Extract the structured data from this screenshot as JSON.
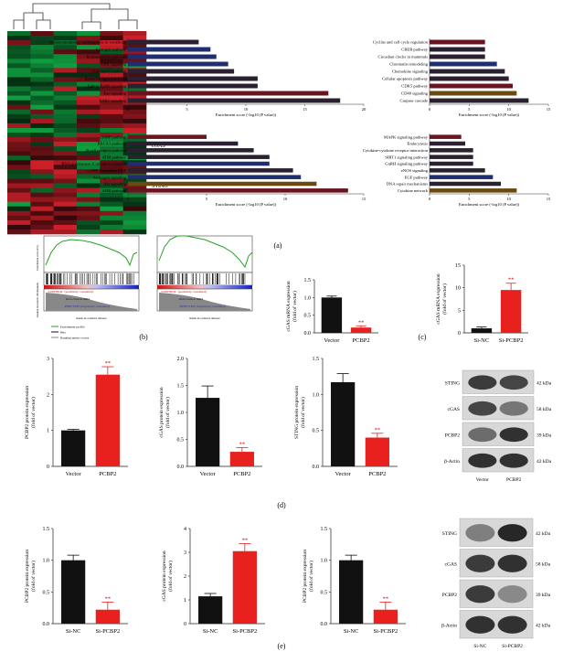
{
  "panel_labels": {
    "a": "(a)",
    "b": "(b)",
    "c": "(c)",
    "d": "(d)",
    "e": "(e)"
  },
  "heatmap": {
    "gene_labels": [
      "cGAS",
      "STING"
    ],
    "colors": {
      "high": "#d0202a",
      "low": "#10a040",
      "mid": "#1a1a1a"
    }
  },
  "enrichment_xlabel": "Enrichment score (-log10 (P value))",
  "colors": {
    "black": "#111111",
    "red": "#e8201e",
    "bar_dark": "#2a2030",
    "bar_navy": "#1f2e6e",
    "bar_maroon": "#6a1420",
    "bar_olive": "#6a4a10"
  },
  "gsea": {
    "left": {
      "pos_label": "'CONTROL' (positively correlated)",
      "neg_label": "'PBNCTED' (negatively correlated)",
      "zero_label": "Zero cross at 9464",
      "xlabel": "Rank in ordered dataset",
      "xticks": [
        "0",
        "5,000",
        "10,000",
        "15,000",
        "20,000"
      ]
    },
    "right": {
      "pos_label": "'CONTROL' (positively correlated)",
      "neg_label": "'INFECTED' (negatively correlated)",
      "zero_label": "Zero cross at 9464",
      "xlabel": "Rank in ordered dataset",
      "xticks": [
        "0",
        "5,000",
        "10,000",
        "15,000",
        "20,000"
      ]
    },
    "legend": [
      "Enrichment profile",
      "Hits",
      "Ranking metric scores"
    ],
    "ylabel_top": "Enrichment score (ES)",
    "ylabel_bottom": "Ranked list metric (PreRanked)"
  },
  "western_d": {
    "bands": [
      "STING",
      "cGAS",
      "PCBP2",
      "β-Actin"
    ],
    "kda": [
      "42 kDa",
      "58 kDa",
      "39 kDa",
      "42 kDa"
    ],
    "lanes": [
      "Vector",
      "PCBP2"
    ]
  },
  "western_e": {
    "bands": [
      "STING",
      "cGAS",
      "PCBP2",
      "β-Actin"
    ],
    "kda": [
      "42 kDa",
      "58 kDa",
      "39 kDa",
      "42 kDa"
    ],
    "lanes": [
      "Si-NC",
      "Si-PCBP2"
    ]
  },
  "chart_data": [
    {
      "id": "a1",
      "type": "bar",
      "orientation": "horizontal",
      "categories": [
        "Factors promoting cardiogenesis in vertebrate",
        "Estrogen pathway",
        "Erythropoietin pathway",
        "ERK signaling",
        "TcR family pathway",
        "Epithelial tight junctions",
        "Ephrin EphB signaling",
        "Fas signaling",
        "FAK1 signaling"
      ],
      "values": [
        6,
        7,
        7.5,
        8.5,
        9,
        11,
        11,
        17,
        18
      ],
      "xlim": [
        0,
        20
      ],
      "xticks": [
        "0",
        "5",
        "10",
        "15",
        "20"
      ],
      "xlabel": "Enrichment score (-log10 (P value))",
      "bar_colors": [
        "bar_dark",
        "bar_navy",
        "bar_navy",
        "bar_navy",
        "bar_dark",
        "bar_dark",
        "bar_dark",
        "bar_maroon",
        "bar_dark"
      ]
    },
    {
      "id": "a2",
      "type": "bar",
      "orientation": "horizontal",
      "categories": [
        "Cyclins and cell cycle regulation",
        "CREB pathway",
        "Circadian clocks in mammals",
        "Chromatin remodeling",
        "Chemokine signaling",
        "Cellular apoptosis pathway",
        "CDK5 pathway",
        "CD40 signaling",
        "Caspase cascade"
      ],
      "values": [
        7,
        7,
        7,
        8.5,
        9.5,
        10,
        10.5,
        11,
        12.5
      ],
      "xlim": [
        0,
        15
      ],
      "xticks": [
        "0",
        "5",
        "10",
        "15"
      ],
      "xlabel": "Enrichment score (-log10 (P value))",
      "bar_colors": [
        "bar_maroon",
        "bar_dark",
        "bar_dark",
        "bar_navy",
        "bar_dark",
        "bar_dark",
        "bar_maroon",
        "bar_olive",
        "bar_dark"
      ]
    },
    {
      "id": "a3",
      "type": "bar",
      "orientation": "horizontal",
      "categories": [
        "cAMP pathway",
        "BRCA1 pathway",
        "B cell receptor pathway",
        "ATM pathway",
        "RNA polymerase II initiation complex",
        "cAMP-dependent PKA",
        "Androgen signaling",
        "Akt signaling",
        "AHR pathway"
      ],
      "values": [
        5,
        7,
        8,
        9,
        9,
        10.5,
        11,
        12,
        14
      ],
      "xlim": [
        0,
        15
      ],
      "xticks": [
        "0",
        "5",
        "10",
        "15"
      ],
      "xlabel": "Enrichment score (-log10 (P value))",
      "bar_colors": [
        "bar_maroon",
        "bar_dark",
        "bar_dark",
        "bar_dark",
        "bar_navy",
        "bar_dark",
        "bar_navy",
        "bar_olive",
        "bar_maroon"
      ]
    },
    {
      "id": "a4",
      "type": "bar",
      "orientation": "horizontal",
      "categories": [
        "MAPK signaling pathway",
        "Endocytosis",
        "Cytokine-cytokine receptor interaction",
        "SIRT1 signaling pathway",
        "GnRH signaling pathway",
        "eNOS signaling",
        "EGF pathway",
        "DNA repair mechanisms",
        "Cytokine network"
      ],
      "values": [
        4,
        4.5,
        5.5,
        5.5,
        5.5,
        7,
        8,
        9,
        11
      ],
      "xlim": [
        0,
        15
      ],
      "xticks": [
        "0",
        "5",
        "10",
        "15"
      ],
      "xlabel": "Enrichment score (-log10 (P value))",
      "bar_colors": [
        "bar_maroon",
        "bar_dark",
        "bar_dark",
        "bar_dark",
        "bar_dark",
        "bar_dark",
        "bar_navy",
        "bar_dark",
        "bar_olive"
      ]
    },
    {
      "id": "c1",
      "type": "bar",
      "categories": [
        "Vector",
        "PCBP2"
      ],
      "values": [
        1.0,
        0.15
      ],
      "errors": [
        0.04,
        0.05
      ],
      "ylim": [
        0,
        1.5
      ],
      "yticks": [
        "0.0",
        "0.5",
        "1.0",
        "1.5"
      ],
      "ylabel": "cGAS mRNA expression (fold of vector)",
      "sig": "**"
    },
    {
      "id": "c2",
      "type": "bar",
      "categories": [
        "Si-NC",
        "Si-PCBP2"
      ],
      "values": [
        1.0,
        9.5
      ],
      "errors": [
        0.3,
        1.5
      ],
      "ylim": [
        0,
        15
      ],
      "yticks": [
        "0",
        "5",
        "10",
        "15"
      ],
      "ylabel": "cGAS mRNA expression (fold of vector)",
      "sig": "**"
    },
    {
      "id": "d1",
      "type": "bar",
      "categories": [
        "Vector",
        "PCBP2"
      ],
      "values": [
        1.0,
        2.55
      ],
      "errors": [
        0.03,
        0.22
      ],
      "ylim": [
        0,
        3
      ],
      "yticks": [
        "0",
        "1",
        "2",
        "3"
      ],
      "ylabel": "PCBP2 protein expression (fold of vector)",
      "sig": "**"
    },
    {
      "id": "d2",
      "type": "bar",
      "categories": [
        "Vector",
        "PCBP2"
      ],
      "values": [
        1.27,
        0.27
      ],
      "errors": [
        0.22,
        0.08
      ],
      "ylim": [
        0,
        2.0
      ],
      "yticks": [
        "0.0",
        "0.5",
        "1.0",
        "1.5",
        "2.0"
      ],
      "ylabel": "cGAS protein expression (fold of vector)",
      "sig": "**"
    },
    {
      "id": "d3",
      "type": "bar",
      "categories": [
        "Vector",
        "PCBP2"
      ],
      "values": [
        1.17,
        0.4
      ],
      "errors": [
        0.12,
        0.06
      ],
      "ylim": [
        0,
        1.5
      ],
      "yticks": [
        "0.0",
        "0.5",
        "1.0",
        "1.5"
      ],
      "ylabel": "STING protein expression (fold of vector)",
      "sig": "**"
    },
    {
      "id": "e1",
      "type": "bar",
      "categories": [
        "Si-NC",
        "Si-PCBP2"
      ],
      "values": [
        1.0,
        0.22
      ],
      "errors": [
        0.08,
        0.12
      ],
      "ylim": [
        0,
        1.5
      ],
      "yticks": [
        "0.0",
        "0.5",
        "1.0",
        "1.5"
      ],
      "ylabel": "PCBP2 protein expression (fold of vector)",
      "sig": "**"
    },
    {
      "id": "e2",
      "type": "bar",
      "categories": [
        "Si-NC",
        "Si-PCBP2"
      ],
      "values": [
        1.15,
        3.05
      ],
      "errors": [
        0.12,
        0.32
      ],
      "ylim": [
        0,
        4
      ],
      "yticks": [
        "0",
        "1",
        "2",
        "3",
        "4"
      ],
      "ylabel": "cGAS protein expression (fold of vector)",
      "sig": "**"
    },
    {
      "id": "e3",
      "type": "bar",
      "categories": [
        "Si-NC",
        "Si-PCBP2"
      ],
      "values": [
        1.0,
        0.22
      ],
      "errors": [
        0.08,
        0.12
      ],
      "ylim": [
        0,
        1.5
      ],
      "yticks": [
        "0.0",
        "0.5",
        "1.0",
        "1.5"
      ],
      "ylabel": "PCBP2 protein expression (fold of vector)",
      "sig": "**"
    }
  ]
}
